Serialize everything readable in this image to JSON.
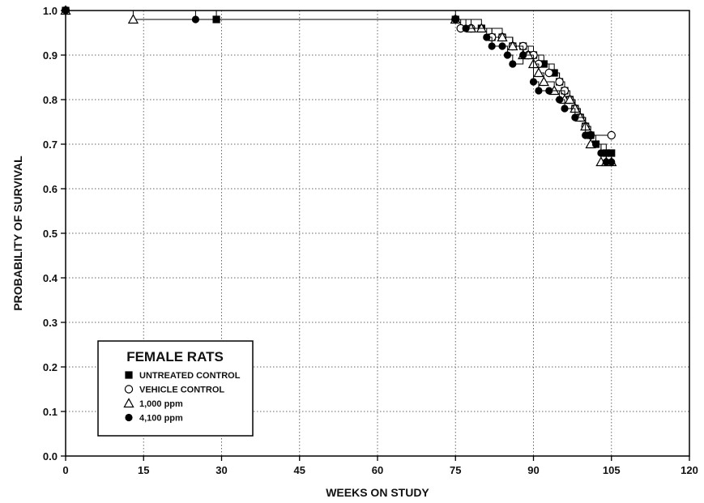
{
  "chart_data": {
    "type": "line",
    "title": "",
    "xlabel": "WEEKS ON STUDY",
    "ylabel": "PROBABILITY OF SURVIVAL",
    "xlim": [
      0,
      120
    ],
    "ylim": [
      0.0,
      1.0
    ],
    "xticks": [
      "0",
      "15",
      "30",
      "45",
      "60",
      "75",
      "90",
      "105",
      "120"
    ],
    "yticks": [
      "0.0",
      "0.1",
      "0.2",
      "0.3",
      "0.4",
      "0.5",
      "0.6",
      "0.7",
      "0.8",
      "0.9",
      "1.0"
    ],
    "grid": true,
    "legend": {
      "title": "FEMALE RATS",
      "placement": "bottom-left"
    },
    "series": [
      {
        "name": "UNTREATED CONTROL",
        "marker": "filled-square",
        "x": [
          0,
          29,
          75,
          80,
          82,
          84,
          86,
          88,
          90,
          92,
          94,
          95,
          96,
          97,
          98,
          99,
          100,
          101,
          102,
          104,
          105
        ],
        "y": [
          1.0,
          0.98,
          0.98,
          0.96,
          0.94,
          0.94,
          0.92,
          0.92,
          0.9,
          0.88,
          0.86,
          0.84,
          0.82,
          0.8,
          0.78,
          0.76,
          0.74,
          0.72,
          0.7,
          0.68,
          0.68
        ]
      },
      {
        "name": "VEHICLE CONTROL",
        "marker": "open-circle",
        "x": [
          0,
          75,
          76,
          78,
          82,
          84,
          86,
          88,
          89,
          90,
          91,
          93,
          95,
          96,
          97,
          98,
          99,
          100,
          101,
          105
        ],
        "y": [
          1.0,
          0.98,
          0.96,
          0.96,
          0.94,
          0.94,
          0.92,
          0.92,
          0.9,
          0.9,
          0.88,
          0.86,
          0.84,
          0.82,
          0.8,
          0.78,
          0.76,
          0.74,
          0.72,
          0.72
        ]
      },
      {
        "name": "1,000 ppm",
        "marker": "open-triangle",
        "x": [
          0,
          13,
          75,
          78,
          80,
          84,
          86,
          88,
          89,
          90,
          91,
          92,
          94,
          96,
          97,
          98,
          99,
          100,
          101,
          103,
          104,
          105
        ],
        "y": [
          1.0,
          0.98,
          0.98,
          0.96,
          0.96,
          0.94,
          0.92,
          0.9,
          0.9,
          0.88,
          0.86,
          0.84,
          0.82,
          0.8,
          0.8,
          0.78,
          0.76,
          0.74,
          0.7,
          0.66,
          0.66,
          0.66
        ]
      },
      {
        "name": "4,100 ppm",
        "marker": "filled-circle",
        "x": [
          0,
          25,
          75,
          77,
          81,
          82,
          84,
          85,
          86,
          88,
          90,
          91,
          93,
          95,
          96,
          98,
          100,
          101,
          102,
          103,
          104,
          105
        ],
        "y": [
          1.0,
          0.98,
          0.98,
          0.96,
          0.94,
          0.92,
          0.92,
          0.9,
          0.88,
          0.9,
          0.84,
          0.82,
          0.82,
          0.8,
          0.78,
          0.76,
          0.72,
          0.72,
          0.7,
          0.68,
          0.66,
          0.66
        ]
      }
    ]
  }
}
